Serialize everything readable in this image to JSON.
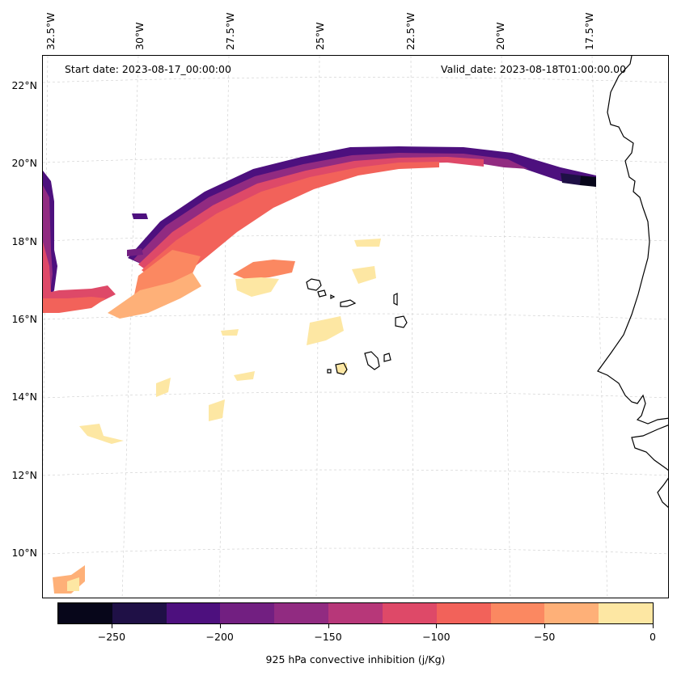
{
  "annotations": {
    "start_date": "Start date: 2023-08-17_00:00:00",
    "valid_date": "Valid_date: 2023-08-18T01:00:00.00"
  },
  "axes": {
    "lon_labels": [
      "32.5°W",
      "30°W",
      "27.5°W",
      "25°W",
      "22.5°W",
      "20°W",
      "17.5°W"
    ],
    "lat_labels": [
      "22°N",
      "20°N",
      "18°N",
      "16°N",
      "14°N",
      "12°N",
      "10°N"
    ]
  },
  "colorbar": {
    "label": "925 hPa convective inhibition (j/Kg)",
    "tick_labels": [
      "−250",
      "−200",
      "−150",
      "−100",
      "−50",
      "0"
    ],
    "colors": [
      "#07061a",
      "#1f1046",
      "#4d107e",
      "#721f81",
      "#912b81",
      "#b73779",
      "#de4968",
      "#f2625a",
      "#fb8861",
      "#feb078",
      "#fde7a3"
    ]
  },
  "map_data": {
    "region": {
      "lon_range": [
        -33,
        -16
      ],
      "lat_range": [
        9,
        22.8
      ]
    },
    "variable": "925 hPa convective inhibition",
    "units": "j/Kg",
    "levels": [
      -275,
      -250,
      -225,
      -200,
      -175,
      -150,
      -125,
      -100,
      -75,
      -50,
      -25,
      0
    ],
    "features": [
      "coastline-west-africa",
      "cape-verde-islands"
    ]
  }
}
